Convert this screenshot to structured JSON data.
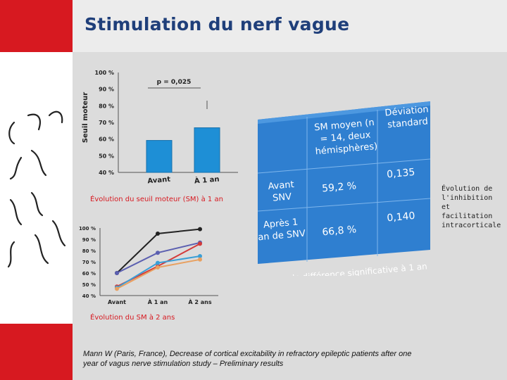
{
  "header": {
    "title": "Stimulation du nerf vague"
  },
  "chart1": {
    "caption": "Évolution du seuil moteur (SM) à 1 an",
    "ylabel": "Seuil moteur",
    "yticks": [
      "100 %",
      "90 %",
      "80 %",
      "70 %",
      "60 %",
      "50 %",
      "40 %"
    ],
    "pvalue": "p = 0,025",
    "categories": [
      "Avant",
      "À 1 an"
    ]
  },
  "chart2": {
    "caption": "Évolution du SM à 2 ans",
    "yticks": [
      "100 %",
      "90 %",
      "80 %",
      "70 %",
      "60 %",
      "50 %",
      "40 %"
    ],
    "categories": [
      "Avant",
      "À 1 an",
      "À 2 ans"
    ]
  },
  "table": {
    "headers": [
      "SM moyen (n = 14, deux hémisphères)",
      "Déviation standard"
    ],
    "rows": [
      {
        "label": "Avant SNV",
        "mean": "59,2 %",
        "sd": "0,135"
      },
      {
        "label": "Après 1 an de SNV",
        "mean": "66,8 %",
        "sd": "0,140"
      }
    ],
    "footnote": "Pas de différence significative à 1 an"
  },
  "side_note": "Évolution de l'inhibition et facilitation intracorticale",
  "citation": "Mann W (Paris, France), Decrease of cortical excitability in refractory epileptic patients after one year of vagus nerve stimulation study – Preliminary results",
  "colors": {
    "brand_red": "#d71920",
    "title_blue": "#1f3f7a",
    "bar_blue": "#1e8fd6",
    "table_blue": "#2f7fd0"
  },
  "chart_data": [
    {
      "type": "bar",
      "categories": [
        "Avant",
        "À 1 an"
      ],
      "values": [
        59.2,
        66.8
      ],
      "ylabel": "Seuil moteur",
      "ylim": [
        40,
        100
      ],
      "annotations": [
        "p = 0,025"
      ],
      "grid": false
    },
    {
      "type": "line",
      "categories": [
        "Avant",
        "À 1 an",
        "À 2 ans"
      ],
      "ylim": [
        40,
        100
      ],
      "grid": false,
      "series": [
        {
          "values": [
            60,
            95,
            99
          ],
          "color": "#222222"
        },
        {
          "values": [
            60,
            78,
            87
          ],
          "color": "#5b5fb0"
        },
        {
          "values": [
            48,
            66,
            86
          ],
          "color": "#d33a3a"
        },
        {
          "values": [
            47,
            69,
            75
          ],
          "color": "#3a9fd6"
        },
        {
          "values": [
            46,
            65,
            72
          ],
          "color": "#e8a060"
        }
      ]
    }
  ]
}
